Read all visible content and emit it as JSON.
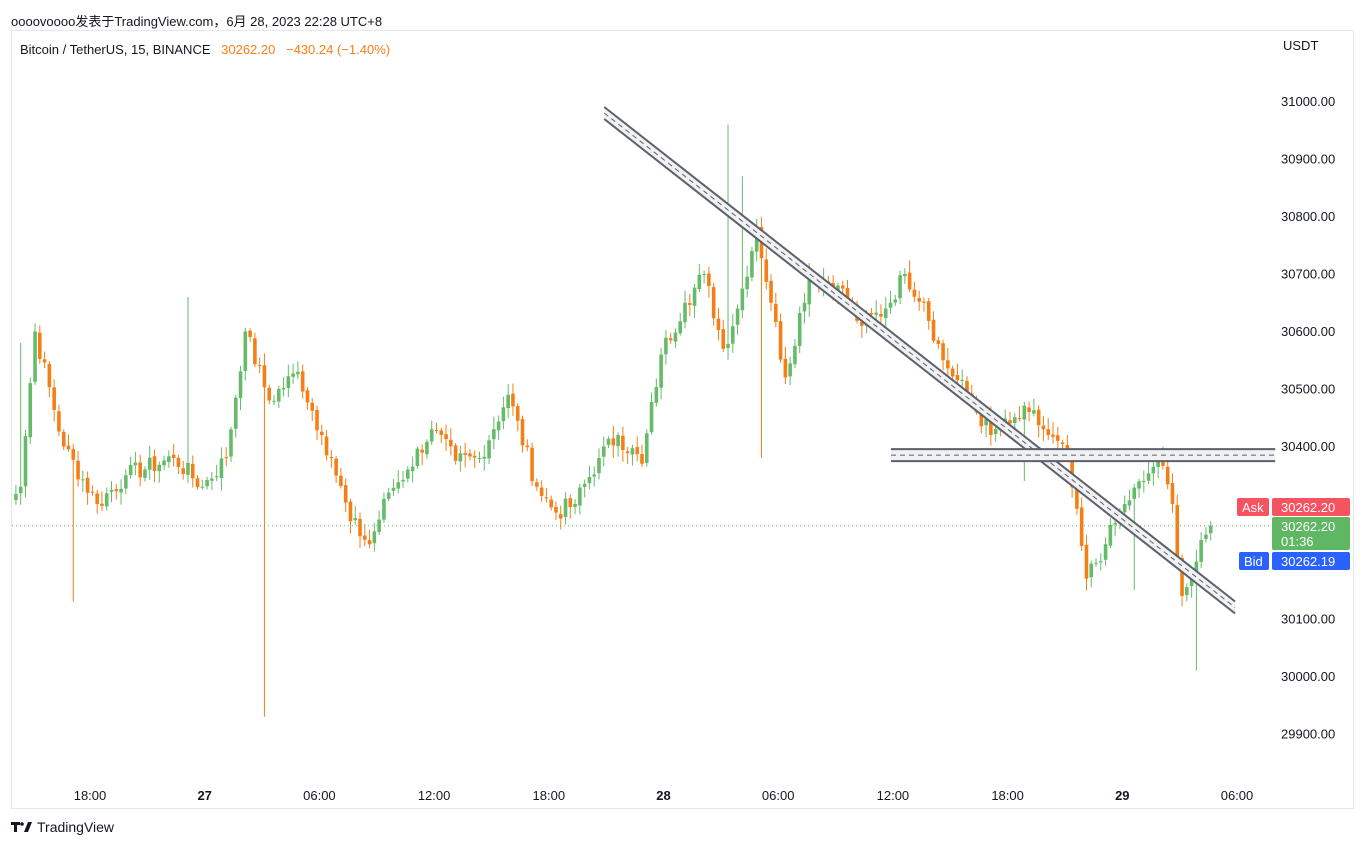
{
  "header": {
    "caption": "oooovoooo发表于TradingView.com，6月 28, 2023 22:28 UTC+8"
  },
  "legend": {
    "symbol": "Bitcoin / TetherUS, 15, BINANCE",
    "last": "30262.20",
    "change": "−430.24 (−1.40%)"
  },
  "currency": "USDT",
  "footer": {
    "brand": "TradingView"
  },
  "tags": {
    "ask_label": "Ask",
    "ask_value": "30262.20",
    "last_value": "30262.20",
    "countdown": "01:36",
    "bid_label": "Bid",
    "bid_value": "30262.19"
  },
  "colors": {
    "up": "#66bb6a",
    "down": "#f57f17",
    "ask": "#f7525f",
    "bid": "#2962ff",
    "last_tag": "#5fb764",
    "drawing": "#5d606b",
    "axis_text": "#131722"
  },
  "chart_data": {
    "type": "candlestick",
    "symbol": "Bitcoin / TetherUS",
    "interval": "15",
    "exchange": "BINANCE",
    "y_axis": {
      "unit": "USDT",
      "range": [
        29830,
        31110
      ],
      "ticks": [
        31000,
        30900,
        30800,
        30700,
        30600,
        30500,
        30400,
        30100,
        30000,
        29900
      ],
      "tick_labels": [
        "31000.00",
        "30900.00",
        "30800.00",
        "30700.00",
        "30600.00",
        "30500.00",
        "30400.00",
        "30100.00",
        "30000.00",
        "29900.00"
      ]
    },
    "x_axis": {
      "ticks": [
        {
          "label": "18:00",
          "bold": false,
          "hours": 0
        },
        {
          "label": "27",
          "bold": true,
          "hours": 6
        },
        {
          "label": "06:00",
          "bold": false,
          "hours": 12
        },
        {
          "label": "12:00",
          "bold": false,
          "hours": 18
        },
        {
          "label": "18:00",
          "bold": false,
          "hours": 24
        },
        {
          "label": "28",
          "bold": true,
          "hours": 30
        },
        {
          "label": "06:00",
          "bold": false,
          "hours": 36
        },
        {
          "label": "12:00",
          "bold": false,
          "hours": 42
        },
        {
          "label": "18:00",
          "bold": false,
          "hours": 48
        },
        {
          "label": "29",
          "bold": true,
          "hours": 54
        },
        {
          "label": "06:00",
          "bold": false,
          "hours": 60
        }
      ]
    },
    "last_price": 30262.2,
    "key_points": [
      {
        "bar": 0,
        "close": 30310
      },
      {
        "bar": 5,
        "close": 30330
      },
      {
        "bar": 8,
        "close": 30600
      },
      {
        "bar": 14,
        "close": 30400
      },
      {
        "bar": 21,
        "close": 30300
      },
      {
        "bar": 27,
        "close": 30350
      },
      {
        "bar": 37,
        "close": 30380
      },
      {
        "bar": 43,
        "close": 30330
      },
      {
        "bar": 48,
        "close": 30380
      },
      {
        "bar": 52,
        "close": 30600
      },
      {
        "bar": 57,
        "close": 30480
      },
      {
        "bar": 63,
        "close": 30530
      },
      {
        "bar": 68,
        "close": 30420
      },
      {
        "bar": 70,
        "close": 30380
      },
      {
        "bar": 74,
        "close": 30270
      },
      {
        "bar": 78,
        "close": 30230
      },
      {
        "bar": 82,
        "close": 30320
      },
      {
        "bar": 86,
        "close": 30360
      },
      {
        "bar": 91,
        "close": 30430
      },
      {
        "bar": 96,
        "close": 30375
      },
      {
        "bar": 101,
        "close": 30380
      },
      {
        "bar": 107,
        "close": 30490
      },
      {
        "bar": 113,
        "close": 30330
      },
      {
        "bar": 117,
        "close": 30285
      },
      {
        "bar": 121,
        "close": 30300
      },
      {
        "bar": 126,
        "close": 30380
      },
      {
        "bar": 130,
        "close": 30420
      },
      {
        "bar": 135,
        "close": 30370
      },
      {
        "bar": 139,
        "close": 30560
      },
      {
        "bar": 144,
        "close": 30650
      },
      {
        "bar": 148,
        "close": 30700
      },
      {
        "bar": 152,
        "close": 30570
      },
      {
        "bar": 155,
        "close": 30640
      },
      {
        "bar": 159,
        "close": 30780
      },
      {
        "bar": 162,
        "close": 30650
      },
      {
        "bar": 165,
        "close": 30520
      },
      {
        "bar": 170,
        "close": 30700
      },
      {
        "bar": 176,
        "close": 30680
      },
      {
        "bar": 181,
        "close": 30610
      },
      {
        "bar": 186,
        "close": 30640
      },
      {
        "bar": 190,
        "close": 30700
      },
      {
        "bar": 194,
        "close": 30650
      },
      {
        "bar": 198,
        "close": 30550
      },
      {
        "bar": 203,
        "close": 30490
      },
      {
        "bar": 208,
        "close": 30420
      },
      {
        "bar": 212,
        "close": 30440
      },
      {
        "bar": 216,
        "close": 30460
      },
      {
        "bar": 220,
        "close": 30420
      },
      {
        "bar": 224,
        "close": 30380
      },
      {
        "bar": 228,
        "close": 30170
      },
      {
        "bar": 232,
        "close": 30230
      },
      {
        "bar": 236,
        "close": 30300
      },
      {
        "bar": 240,
        "close": 30340
      },
      {
        "bar": 243,
        "close": 30380
      },
      {
        "bar": 246,
        "close": 30300
      },
      {
        "bar": 248,
        "close": 30140
      },
      {
        "bar": 251,
        "close": 30200
      },
      {
        "bar": 254,
        "close": 30262
      }
    ],
    "notable_extremes": [
      {
        "bar": 5,
        "high": 30580
      },
      {
        "bar": 16,
        "low": 30130
      },
      {
        "bar": 40,
        "high": 30660
      },
      {
        "bar": 56,
        "low": 29930
      },
      {
        "bar": 153,
        "high": 30960
      },
      {
        "bar": 156,
        "high": 30870
      },
      {
        "bar": 160,
        "low": 30380
      },
      {
        "bar": 215,
        "low": 30340
      },
      {
        "bar": 238,
        "low": 30150
      },
      {
        "bar": 251,
        "low": 30010
      }
    ],
    "drawings": [
      {
        "type": "trend_channel",
        "start": {
          "hours": 26.9,
          "price": 30980
        },
        "end": {
          "hours": 59.9,
          "price": 30120
        }
      },
      {
        "type": "horizontal_channel",
        "start_hours": 41.9,
        "end_hours": 62.0,
        "price": 30385
      }
    ]
  }
}
